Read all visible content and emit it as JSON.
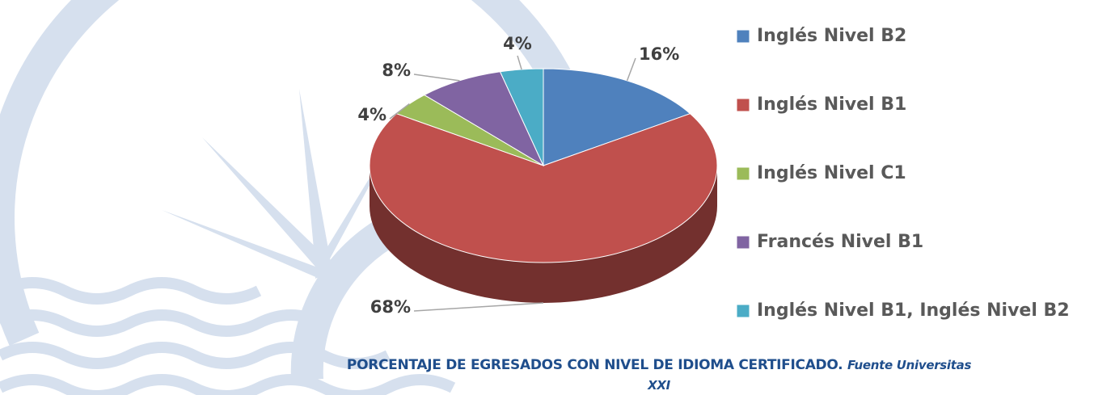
{
  "chart_data": {
    "type": "pie",
    "title": "PORCENTAJE DE EGRESADOS CON NIVEL DE IDIOMA CERTIFICADO.",
    "source": "Fuente Universitas XXI",
    "categories": [
      "Inglés Nivel B2",
      "Inglés Nivel B1",
      "Inglés Nivel C1",
      "Francés Nivel B1",
      "Inglés Nivel B1, Inglés Nivel B2"
    ],
    "values": [
      16,
      68,
      4,
      8,
      4
    ],
    "value_labels": [
      "16%",
      "68%",
      "4%",
      "8%",
      "4%"
    ],
    "colors": [
      "#4f81bd",
      "#c0504d",
      "#9bbb59",
      "#8064a2",
      "#4bacc6"
    ],
    "legend": "right"
  }
}
